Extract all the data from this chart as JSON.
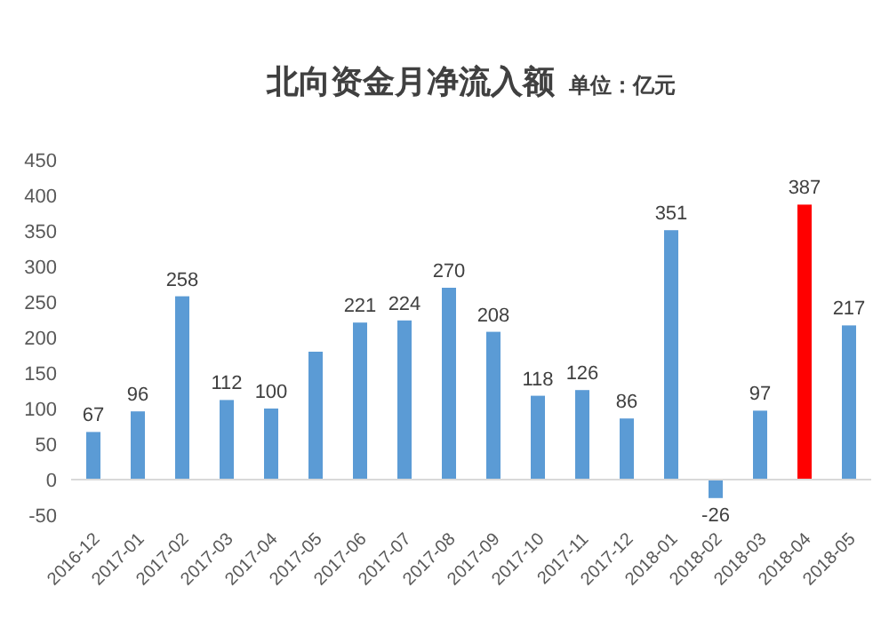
{
  "chart_data": {
    "type": "bar",
    "title": "北向资金月净流入额",
    "subtitle": "单位：亿元",
    "categories": [
      "2016-12",
      "2017-01",
      "2017-02",
      "2017-03",
      "2017-04",
      "2017-05",
      "2017-06",
      "2017-07",
      "2017-08",
      "2017-09",
      "2017-10",
      "2017-11",
      "2017-12",
      "2018-01",
      "2018-02",
      "2018-03",
      "2018-04",
      "2018-05"
    ],
    "values": [
      67,
      96,
      258,
      112,
      100,
      180,
      221,
      224,
      270,
      208,
      118,
      126,
      86,
      351,
      -26,
      97,
      387,
      217
    ],
    "value_labels": [
      "67",
      "96",
      "258",
      "112",
      "100",
      null,
      "221",
      "224",
      "270",
      "208",
      "118",
      "126",
      "86",
      "351",
      "-26",
      "97",
      "387",
      "217"
    ],
    "colors": [
      "#5b9bd5",
      "#5b9bd5",
      "#5b9bd5",
      "#5b9bd5",
      "#5b9bd5",
      "#5b9bd5",
      "#5b9bd5",
      "#5b9bd5",
      "#5b9bd5",
      "#5b9bd5",
      "#5b9bd5",
      "#5b9bd5",
      "#5b9bd5",
      "#5b9bd5",
      "#5b9bd5",
      "#5b9bd5",
      "#ff0000",
      "#5b9bd5"
    ],
    "ylim": [
      -50,
      450
    ],
    "yticks": [
      -50,
      0,
      50,
      100,
      150,
      200,
      250,
      300,
      350,
      400,
      450
    ]
  }
}
